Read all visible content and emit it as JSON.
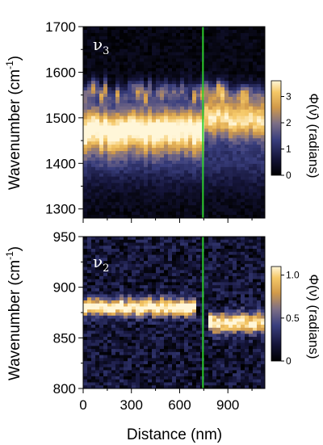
{
  "chart_data": [
    {
      "type": "heatmap",
      "panel_label": "ν",
      "panel_label_sub": "3",
      "xlim": [
        0,
        1130
      ],
      "ylim": [
        1280,
        1700
      ],
      "ylabel": "Wavenumber (cm",
      "ylabel_sup": "-1",
      "ylabel_end": ")",
      "y_ticks": [
        "1300",
        "1400",
        "1500",
        "1600",
        "1700"
      ],
      "y_tick_values": [
        1300,
        1400,
        1500,
        1600,
        1700
      ],
      "colorbar": {
        "label": "Φ(ν̄)  (radians)",
        "range": [
          0,
          3.6
        ],
        "ticks": [
          "0",
          "1",
          "2",
          "3"
        ],
        "tick_values": [
          0,
          1,
          2,
          3
        ]
      },
      "marker_line": {
        "x": 745,
        "color": "#2ecc2e"
      },
      "band": {
        "left": {
          "x_range": [
            0,
            745
          ],
          "center": 1475,
          "width": 35,
          "peak": 3.4
        },
        "right": {
          "x_range": [
            745,
            1130
          ],
          "center": 1500,
          "width": 30,
          "peak": 3.1
        },
        "upper_fringe": {
          "center": 1555,
          "width": 15,
          "peak": 1.6
        },
        "lower_tail": {
          "center": 1410,
          "width": 45,
          "peak": 0.9
        }
      }
    },
    {
      "type": "heatmap",
      "panel_label": "ν",
      "panel_label_sub": "2",
      "xlim": [
        0,
        1130
      ],
      "ylim": [
        800,
        950
      ],
      "xlabel": "Distance (nm)",
      "ylabel": "Wavenumber (cm",
      "ylabel_sup": "-1",
      "ylabel_end": ")",
      "x_ticks": [
        "0",
        "300",
        "600",
        "900"
      ],
      "x_tick_values": [
        0,
        300,
        600,
        900
      ],
      "y_ticks": [
        "800",
        "850",
        "900",
        "950"
      ],
      "y_tick_values": [
        800,
        850,
        900,
        950
      ],
      "colorbar": {
        "label": "Φ(ν)  (radians)",
        "range": [
          0,
          1.1
        ],
        "ticks": [
          "0",
          "0.5",
          "1.0"
        ],
        "tick_values": [
          0,
          0.5,
          1.0
        ]
      },
      "marker_line": {
        "x": 745,
        "color": "#2ecc2e"
      },
      "band": {
        "left": {
          "x_range": [
            0,
            700
          ],
          "center": 880,
          "width": 6,
          "peak": 1.05
        },
        "right": {
          "x_range": [
            790,
            1130
          ],
          "center": 865,
          "width": 7,
          "peak": 0.95
        }
      }
    }
  ]
}
